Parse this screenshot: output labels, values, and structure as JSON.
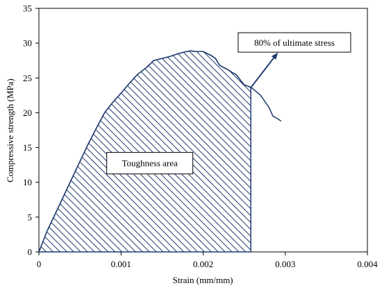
{
  "chart_data": {
    "type": "line",
    "xlabel": "Strain (mm/mm)",
    "ylabel": "Compressive strength (MPa)",
    "xlim": [
      0,
      0.004
    ],
    "ylim": [
      0,
      35
    ],
    "x_ticks": [
      0,
      0.001,
      0.002,
      0.003,
      0.004
    ],
    "x_tick_labels": [
      "0",
      "0.001",
      "0.002",
      "0.003",
      "0.004"
    ],
    "y_ticks": [
      0,
      5,
      10,
      15,
      20,
      25,
      30,
      35
    ],
    "y_tick_labels": [
      "0",
      "5",
      "10",
      "15",
      "20",
      "25",
      "30",
      "35"
    ],
    "grid": false,
    "series": [
      {
        "color": "#1f3a6e",
        "x": [
          0,
          0.0001,
          0.0002,
          0.0003,
          0.0004,
          0.0005,
          0.0006,
          0.0007,
          0.0008,
          0.0009,
          0.001,
          0.0011,
          0.0012,
          0.0013,
          0.0014,
          0.0015,
          0.0016,
          0.0017,
          0.0018,
          0.00185,
          0.0019,
          0.002,
          0.0021,
          0.00215,
          0.0022,
          0.0023,
          0.00235,
          0.0024,
          0.0025,
          0.00255,
          0.0026,
          0.0027,
          0.0028,
          0.00285,
          0.0029,
          0.00295
        ],
        "y": [
          0,
          3,
          5.5,
          8,
          10.5,
          13,
          15.5,
          17.8,
          20,
          21.5,
          22.8,
          24.2,
          25.5,
          26.4,
          27.5,
          27.8,
          28.1,
          28.5,
          28.8,
          28.9,
          28.8,
          28.8,
          28.2,
          27.8,
          26.8,
          26.2,
          25.8,
          25.5,
          24,
          23.8,
          23.5,
          22.5,
          20.8,
          19.5,
          19.2,
          18.8
        ]
      }
    ],
    "toughness_area": {
      "x_start": 0,
      "x_end": 0.00258,
      "hatch": "diagonal"
    },
    "annotations": [
      {
        "text": "80% of ultimate stress",
        "x": 0.0029,
        "y": 30.3,
        "arrow_to": [
          0.00258,
          23.6
        ],
        "arrow_from": [
          0.0029,
          28.5
        ]
      },
      {
        "text": "Toughness area",
        "x": 0.00135,
        "y": 12.7
      }
    ]
  }
}
